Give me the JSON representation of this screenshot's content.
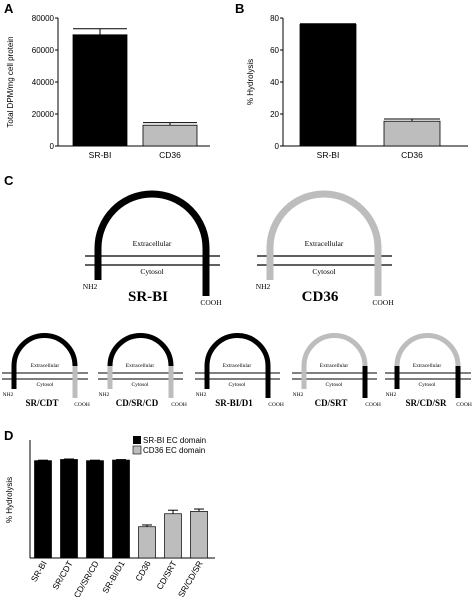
{
  "colors": {
    "srbi": "#000000",
    "cd36": "#bdbdbd"
  },
  "panel_labels": {
    "a": "A",
    "b": "B",
    "c": "C",
    "d": "D"
  },
  "chart_data": [
    {
      "panel": "A",
      "type": "bar",
      "categories": [
        "SR-BI",
        "CD36"
      ],
      "values": [
        69500,
        13000
      ],
      "errors": [
        3800,
        1600
      ],
      "colors": [
        "#000000",
        "#bdbdbd"
      ],
      "ylabel": "Total DPM/mg cell protein",
      "ylim": [
        0,
        80000
      ],
      "yticks": [
        "0",
        "20000",
        "40000",
        "60000",
        "80000"
      ]
    },
    {
      "panel": "B",
      "type": "bar",
      "categories": [
        "SR-BI",
        "CD36"
      ],
      "values": [
        76,
        15.5
      ],
      "errors": [
        0.4,
        1.4
      ],
      "colors": [
        "#000000",
        "#bdbdbd"
      ],
      "ylabel": "% Hydrolysis",
      "ylim": [
        0,
        80
      ],
      "yticks": [
        "0",
        "20",
        "40",
        "60",
        "80"
      ]
    },
    {
      "panel": "D",
      "type": "bar",
      "categories": [
        "SR-BI",
        "SR/CDT",
        "CD/SR/CD",
        "SR-BI/D1",
        "CD36",
        "CD/SRT",
        "SR/CD/SR"
      ],
      "values": [
        82.5,
        83.5,
        82.5,
        83,
        26.5,
        37.5,
        39.5
      ],
      "errors": [
        0.4,
        0.4,
        0.4,
        0.4,
        1.5,
        3,
        2
      ],
      "ylabel": "% Hydrolysis",
      "ylim": [
        0,
        100
      ],
      "series": [
        {
          "name": "SR-BI EC domain",
          "indices": [
            0,
            1,
            2,
            3
          ],
          "color": "#000000"
        },
        {
          "name": "CD36 EC domain",
          "indices": [
            4,
            5,
            6
          ],
          "color": "#bdbdbd"
        }
      ]
    }
  ],
  "cartoons": {
    "large": [
      {
        "name": "SR-BI",
        "extracellular": "Extracellular",
        "cytosol": "Cytosol",
        "nh2": "NH2",
        "cooh": "COOH"
      },
      {
        "name": "CD36",
        "extracellular": "Extracellular",
        "cytosol": "Cytosol",
        "nh2": "NH2",
        "cooh": "COOH"
      }
    ],
    "small": [
      {
        "name": "SR/CDT",
        "extracellular": "Extracellular",
        "cytosol": "Cytosol",
        "nh2": "NH2",
        "cooh": "COOH"
      },
      {
        "name": "CD/SR/CD",
        "extracellular": "Extracellular",
        "cytosol": "Cytosol",
        "nh2": "NH2",
        "cooh": "COOH"
      },
      {
        "name": "SR-BI/D1",
        "extracellular": "Extracellular",
        "cytosol": "Cytosol",
        "nh2": "NH2",
        "cooh": "COOH"
      },
      {
        "name": "CD/SRT",
        "extracellular": "Extracellular",
        "cytosol": "Cytosol",
        "nh2": "NH2",
        "cooh": "COOH"
      },
      {
        "name": "SR/CD/SR",
        "extracellular": "Extracellular",
        "cytosol": "Cytosol",
        "nh2": "NH2",
        "cooh": "COOH"
      }
    ]
  }
}
